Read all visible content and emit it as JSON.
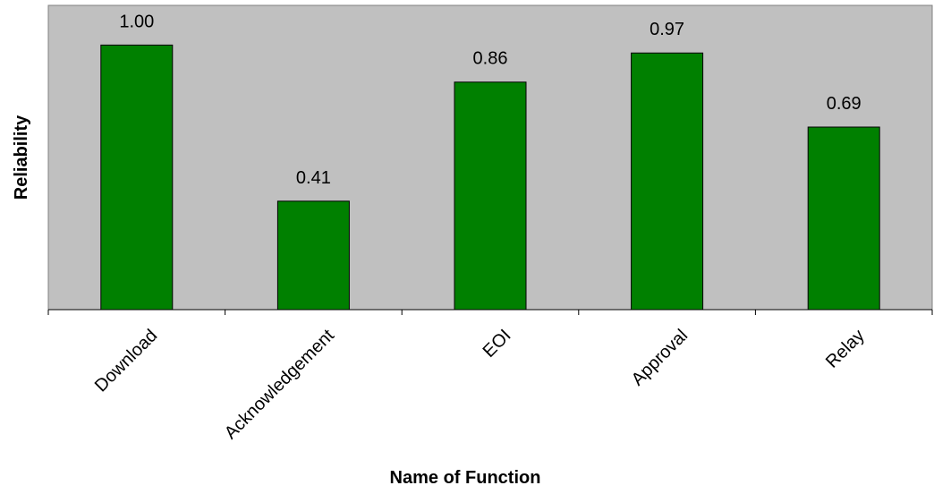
{
  "chart_data": {
    "type": "bar",
    "title": "",
    "xlabel": "Name of Function",
    "ylabel": "Reliability",
    "categories": [
      "Download",
      "Acknowledgement",
      "EOI",
      "Approval",
      "Relay"
    ],
    "values": [
      1.0,
      0.41,
      0.86,
      0.97,
      0.69
    ],
    "data_labels": [
      "1.00",
      "0.41",
      "0.86",
      "0.97",
      "0.69"
    ],
    "ylim": [
      0,
      1.15
    ],
    "grid": false,
    "legend": "none",
    "colors": {
      "bar_fill": "#008000",
      "bar_stroke": "#000000",
      "plot_background": "#c0c0c0",
      "page_background": "#ffffff"
    }
  }
}
